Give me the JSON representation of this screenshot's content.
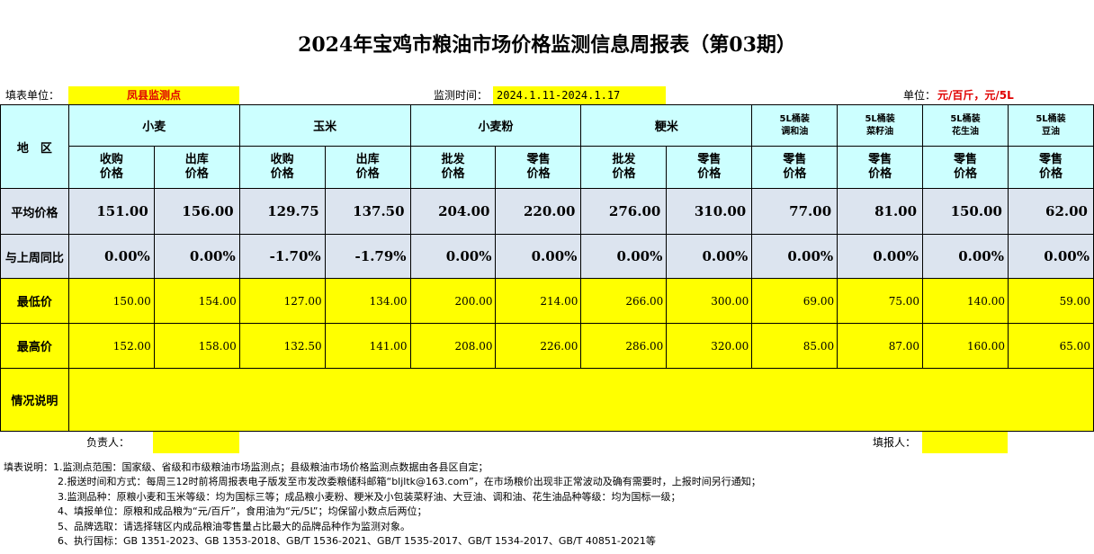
{
  "title": "2024年宝鸡市粮油市场价格监测信息周报表（第03期）",
  "info": {
    "unit_label": "填表单位：",
    "unit_value": "凤县监测点",
    "time_label": "监测时间：",
    "time_value": "2024.1.11-2024.1.17",
    "measure_label": "单位：",
    "measure_value": "元/百斤，元/5L"
  },
  "header": {
    "region": "地　区",
    "groups": [
      "小麦",
      "玉米",
      "小麦粉",
      "粳米"
    ],
    "oils": [
      {
        "line1": "5L桶装",
        "line2": "调和油"
      },
      {
        "line1": "5L桶装",
        "line2": "菜籽油"
      },
      {
        "line1": "5L桶装",
        "line2": "花生油"
      },
      {
        "line1": "5L桶装",
        "line2": "豆油"
      }
    ],
    "subs": [
      {
        "l1": "收购",
        "l2": "价格"
      },
      {
        "l1": "出库",
        "l2": "价格"
      },
      {
        "l1": "收购",
        "l2": "价格"
      },
      {
        "l1": "出库",
        "l2": "价格"
      },
      {
        "l1": "批发",
        "l2": "价格"
      },
      {
        "l1": "零售",
        "l2": "价格"
      },
      {
        "l1": "批发",
        "l2": "价格"
      },
      {
        "l1": "零售",
        "l2": "价格"
      },
      {
        "l1": "零售",
        "l2": "价格"
      },
      {
        "l1": "零售",
        "l2": "价格"
      },
      {
        "l1": "零售",
        "l2": "价格"
      },
      {
        "l1": "零售",
        "l2": "价格"
      }
    ]
  },
  "rows": {
    "avg": {
      "label": "平均价格",
      "values": [
        "151.00",
        "156.00",
        "129.75",
        "137.50",
        "204.00",
        "220.00",
        "276.00",
        "310.00",
        "77.00",
        "81.00",
        "150.00",
        "62.00"
      ]
    },
    "yoy": {
      "label": "与上周同比",
      "values": [
        "0.00%",
        "0.00%",
        "-1.70%",
        "-1.79%",
        "0.00%",
        "0.00%",
        "0.00%",
        "0.00%",
        "0.00%",
        "0.00%",
        "0.00%",
        "0.00%"
      ]
    },
    "min": {
      "label": "最低价",
      "values": [
        "150.00",
        "154.00",
        "127.00",
        "134.00",
        "200.00",
        "214.00",
        "266.00",
        "300.00",
        "69.00",
        "75.00",
        "140.00",
        "59.00"
      ]
    },
    "max": {
      "label": "最高价",
      "values": [
        "152.00",
        "158.00",
        "132.50",
        "141.00",
        "208.00",
        "226.00",
        "286.00",
        "320.00",
        "85.00",
        "87.00",
        "160.00",
        "65.00"
      ]
    },
    "note": {
      "label": "情况说明"
    }
  },
  "sign": {
    "responsible": "负责人：",
    "filler": "填报人："
  },
  "notes": [
    "填表说明：1.监测点范围：国家级、省级和市级粮油市场监测点；县级粮油市场价格监测点数据由各县区自定；",
    "2.报送时间和方式：每周三12时前将周报表电子版发至市发改委粮储科邮箱“bljltk@163.com”，在市场粮价出现非正常波动及确有需要时，上报时间另行通知；",
    "3.监测品种：原粮小麦和玉米等级：均为国标三等；成品粮小麦粉、粳米及小包装菜籽油、大豆油、调和油、花生油品种等级：均为国标一级；",
    "4、填报单位：原粮和成品粮为“元/百斤”，食用油为“元/5L”；均保留小数点后两位；",
    "5、品牌选取：请选择辖区内成品粮油零售量占比最大的品牌品种作为监测对象。",
    "6、执行国标：GB 1351-2023、GB 1353-2018、GB/T 1536-2021、GB/T 1535-2017、GB/T 1534-2017、GB/T 40851-2021等"
  ]
}
